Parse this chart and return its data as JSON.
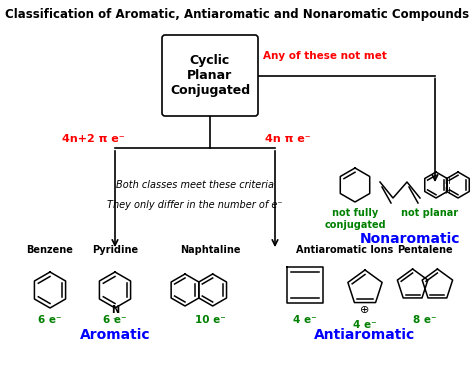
{
  "title": "Classification of Aromatic, Antiaromatic and Nonaromatic Compounds",
  "title_fontsize": 8.5,
  "title_fontweight": "bold",
  "box_text": "Cyclic\nPlanar\nConjugated",
  "any_not_met_text": "Any of these not met",
  "any_not_met_color": "red",
  "branch_left_label": "4n+2 π e⁻",
  "branch_right_label": "4n π e⁻",
  "branch_label_color": "red",
  "middle_italic_text1": "Both classes meet these criteria",
  "middle_italic_text2": "They only differ in the number of e⁻",
  "aromatic_label": "Aromatic",
  "antiaromatic_label": "Antiaromatic",
  "nonaromatic_label": "Nonaromatic",
  "category_color": "blue",
  "electron_color": "green",
  "benzene_label": "Benzene",
  "pyridine_label": "Pyridine",
  "naphtaline_label": "Naphtaline",
  "benzene_e": "6 e⁻",
  "pyridine_e": "6 e⁻",
  "naphtaline_e": "10 e⁻",
  "antiaromatic_ions_label": "Antiaromatic Ions",
  "pentalene_label": "Pentalene",
  "e4_1": "4 e⁻",
  "e4_2": "4 e⁻",
  "e8": "8 e⁻",
  "not_fully_conjugated": "not fully\nconjugated",
  "not_planar": "not planar"
}
